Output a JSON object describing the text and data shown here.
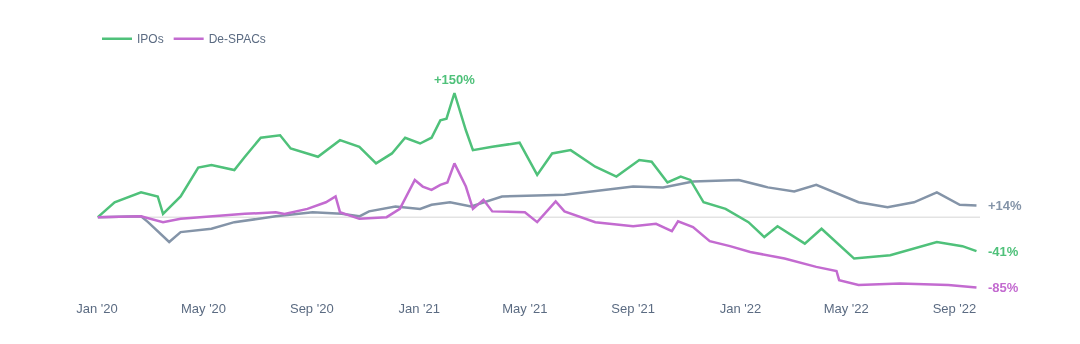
{
  "chart_data": {
    "type": "line",
    "tick_labels": "x",
    "grid": false,
    "legend": "top left",
    "marker": "none",
    "line_style": "solid",
    "x": [
      "2020-01-02",
      "2020-01-21",
      "2020-02-20",
      "2020-03-10",
      "2020-03-16",
      "2020-04-05",
      "2020-04-25",
      "2020-05-10",
      "2020-06-05",
      "2020-06-17",
      "2020-07-05",
      "2020-07-27",
      "2020-08-08",
      "2020-09-08",
      "2020-10-03",
      "2020-10-25",
      "2020-11-13",
      "2020-12-01",
      "2020-12-16",
      "2021-01-02",
      "2021-01-15",
      "2021-01-25",
      "2021-02-01",
      "2021-02-10",
      "2021-02-23",
      "2021-03-03",
      "2021-03-25",
      "2021-04-25",
      "2021-05-15",
      "2021-06-01",
      "2021-06-22",
      "2021-07-20",
      "2021-08-13",
      "2021-09-08",
      "2021-09-22",
      "2021-10-10",
      "2021-10-25",
      "2021-11-05",
      "2021-11-20",
      "2021-12-15",
      "2022-01-10",
      "2022-01-28",
      "2022-02-12",
      "2022-03-15",
      "2022-04-03",
      "2022-05-10",
      "2022-06-20",
      "2022-08-12",
      "2022-09-10",
      "2022-09-26"
    ],
    "xlim": [
      "2020-01-01",
      "2022-09-30"
    ],
    "xticks": [
      {
        "value": "2020-01-01",
        "label": "Jan '20"
      },
      {
        "value": "2020-05-01",
        "label": "May '20"
      },
      {
        "value": "2020-09-01",
        "label": "Sep '20"
      },
      {
        "value": "2021-01-01",
        "label": "Jan '21"
      },
      {
        "value": "2021-05-01",
        "label": "May '21"
      },
      {
        "value": "2021-09-01",
        "label": "Sep '21"
      },
      {
        "value": "2022-01-01",
        "label": "Jan '22"
      },
      {
        "value": "2022-05-01",
        "label": "May '22"
      },
      {
        "value": "2022-09-01",
        "label": "Sep '22"
      }
    ],
    "ref_lines": [
      {
        "axis": "y",
        "value": 0,
        "color": "#e3e3e3"
      }
    ],
    "series": [
      {
        "color": "#8494a8",
        "x": [
          "2020-01-02",
          "2020-02-20",
          "2020-02-28",
          "2020-03-23",
          "2020-04-05",
          "2020-05-10",
          "2020-06-05",
          "2020-07-22",
          "2020-09-02",
          "2020-10-05",
          "2020-10-25",
          "2020-11-05",
          "2020-12-05",
          "2021-01-02",
          "2021-01-15",
          "2021-02-05",
          "2021-03-01",
          "2021-04-05",
          "2021-06-15",
          "2021-09-01",
          "2021-10-05",
          "2021-11-08",
          "2021-12-30",
          "2022-02-01",
          "2022-03-03",
          "2022-03-28",
          "2022-05-15",
          "2022-06-17",
          "2022-07-17",
          "2022-08-12",
          "2022-09-07",
          "2022-09-26"
        ],
        "values": [
          0,
          1,
          -6,
          -30,
          -18,
          -14,
          -6,
          1,
          6,
          4,
          1,
          7,
          13,
          10,
          15,
          18,
          13,
          25,
          27,
          37,
          36,
          43,
          45,
          36,
          31,
          39,
          18,
          12,
          18,
          30,
          15,
          14
        ],
        "value_labels": [
          null,
          null,
          null,
          null,
          null,
          null,
          null,
          null,
          null,
          null,
          null,
          null,
          null,
          null,
          null,
          null,
          null,
          null,
          null,
          null,
          null,
          null,
          null,
          null,
          null,
          null,
          null,
          null,
          null,
          null,
          null,
          "+14%"
        ]
      },
      {
        "name": "IPOs",
        "color": "#4fc17a",
        "values": [
          0,
          18,
          30,
          25,
          4,
          25,
          60,
          63,
          57,
          73,
          96,
          99,
          83,
          73,
          93,
          85,
          65,
          77,
          96,
          89,
          96,
          117,
          119,
          150,
          105,
          81,
          85,
          90,
          51,
          77,
          81,
          61,
          49,
          69,
          67,
          42,
          49,
          45,
          18,
          10,
          -6,
          -24,
          -11,
          -32,
          -14,
          -50,
          -46,
          -30,
          -35,
          -41
        ],
        "value_labels": [
          null,
          null,
          null,
          null,
          null,
          null,
          null,
          null,
          null,
          null,
          null,
          null,
          null,
          null,
          null,
          null,
          null,
          null,
          null,
          null,
          null,
          null,
          null,
          "+150%",
          null,
          null,
          null,
          null,
          null,
          null,
          null,
          null,
          null,
          null,
          null,
          null,
          null,
          null,
          null,
          null,
          null,
          null,
          null,
          null,
          null,
          null,
          null,
          null,
          null,
          "-41%"
        ]
      },
      {
        "name": "De-SPACs",
        "color": "#c36bd0",
        "x": [
          "2020-01-02",
          "2020-02-20",
          "2020-03-16",
          "2020-04-05",
          "2020-06-17",
          "2020-07-22",
          "2020-08-01",
          "2020-08-27",
          "2020-09-17",
          "2020-09-28",
          "2020-10-03",
          "2020-10-25",
          "2020-11-25",
          "2020-12-10",
          "2020-12-27",
          "2021-01-05",
          "2021-01-15",
          "2021-01-25",
          "2021-02-02",
          "2021-02-10",
          "2021-02-23",
          "2021-03-03",
          "2021-03-15",
          "2021-03-25",
          "2021-05-01",
          "2021-05-15",
          "2021-06-05",
          "2021-06-15",
          "2021-07-20",
          "2021-09-01",
          "2021-09-27",
          "2021-10-15",
          "2021-10-22",
          "2021-11-08",
          "2021-11-27",
          "2021-12-20",
          "2022-01-12",
          "2022-02-20",
          "2022-03-28",
          "2022-04-20",
          "2022-04-23",
          "2022-05-15",
          "2022-07-01",
          "2022-08-25",
          "2022-09-26"
        ],
        "values": [
          0,
          1,
          -6,
          -2,
          4,
          6,
          4,
          10,
          18,
          25,
          6,
          -2,
          0,
          10,
          45,
          37,
          33,
          39,
          42,
          65,
          37,
          10,
          21,
          7,
          6,
          -6,
          19,
          7,
          -6,
          -11,
          -8,
          -17,
          -5,
          -12,
          -29,
          -35,
          -42,
          -50,
          -60,
          -65,
          -76,
          -82,
          -80,
          -82,
          -85
        ],
        "value_labels": [
          null,
          null,
          null,
          null,
          null,
          null,
          null,
          null,
          null,
          null,
          null,
          null,
          null,
          null,
          null,
          null,
          null,
          null,
          null,
          null,
          null,
          null,
          null,
          null,
          null,
          null,
          null,
          null,
          null,
          null,
          null,
          null,
          null,
          null,
          null,
          null,
          null,
          null,
          null,
          null,
          null,
          null,
          null,
          null,
          "-85%"
        ]
      }
    ]
  }
}
